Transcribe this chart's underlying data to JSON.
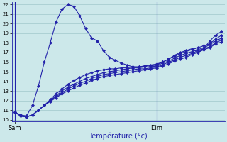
{
  "bg_color": "#cce8ea",
  "grid_color": "#a8cdd0",
  "line_color": "#2222aa",
  "xlabel": "Température (°c)",
  "ylim": [
    9.8,
    22.2
  ],
  "yticks": [
    10,
    11,
    12,
    13,
    14,
    15,
    16,
    17,
    18,
    19,
    20,
    21,
    22
  ],
  "sam_idx": 0,
  "dim_idx": 24,
  "total_pts": 36,
  "series": [
    [
      10.8,
      10.5,
      10.4,
      11.5,
      13.5,
      16.0,
      18.0,
      20.2,
      21.5,
      22.0,
      21.8,
      20.8,
      19.5,
      18.5,
      18.2,
      17.2,
      16.5,
      16.2,
      15.9,
      15.7,
      15.5,
      15.5,
      15.6,
      15.7,
      15.8,
      16.0,
      16.3,
      16.7,
      17.0,
      17.2,
      17.4,
      17.0,
      17.4,
      18.2,
      18.8,
      19.2
    ],
    [
      10.8,
      10.4,
      10.3,
      10.5,
      11.0,
      11.5,
      12.1,
      12.7,
      13.2,
      13.7,
      14.1,
      14.4,
      14.7,
      14.9,
      15.1,
      15.2,
      15.3,
      15.3,
      15.4,
      15.4,
      15.5,
      15.5,
      15.6,
      15.6,
      15.7,
      16.0,
      16.3,
      16.6,
      16.9,
      17.1,
      17.3,
      17.5,
      17.7,
      17.9,
      18.4,
      18.8
    ],
    [
      10.8,
      10.4,
      10.3,
      10.5,
      11.0,
      11.5,
      12.0,
      12.5,
      13.0,
      13.4,
      13.7,
      14.0,
      14.3,
      14.5,
      14.7,
      14.9,
      15.0,
      15.1,
      15.2,
      15.3,
      15.4,
      15.4,
      15.5,
      15.5,
      15.6,
      15.9,
      16.1,
      16.4,
      16.7,
      16.9,
      17.1,
      17.3,
      17.5,
      17.8,
      18.2,
      18.5
    ],
    [
      10.8,
      10.4,
      10.3,
      10.5,
      11.0,
      11.5,
      12.0,
      12.4,
      12.8,
      13.2,
      13.5,
      13.8,
      14.0,
      14.3,
      14.5,
      14.7,
      14.8,
      14.9,
      15.0,
      15.1,
      15.2,
      15.3,
      15.3,
      15.4,
      15.5,
      15.7,
      16.0,
      16.2,
      16.5,
      16.7,
      16.9,
      17.2,
      17.4,
      17.6,
      18.0,
      18.3
    ],
    [
      10.8,
      10.4,
      10.3,
      10.5,
      11.0,
      11.5,
      11.9,
      12.3,
      12.7,
      13.0,
      13.3,
      13.6,
      13.8,
      14.1,
      14.3,
      14.5,
      14.6,
      14.7,
      14.8,
      14.9,
      15.0,
      15.1,
      15.2,
      15.3,
      15.4,
      15.6,
      15.8,
      16.1,
      16.3,
      16.5,
      16.8,
      17.0,
      17.3,
      17.5,
      17.9,
      18.1
    ]
  ]
}
